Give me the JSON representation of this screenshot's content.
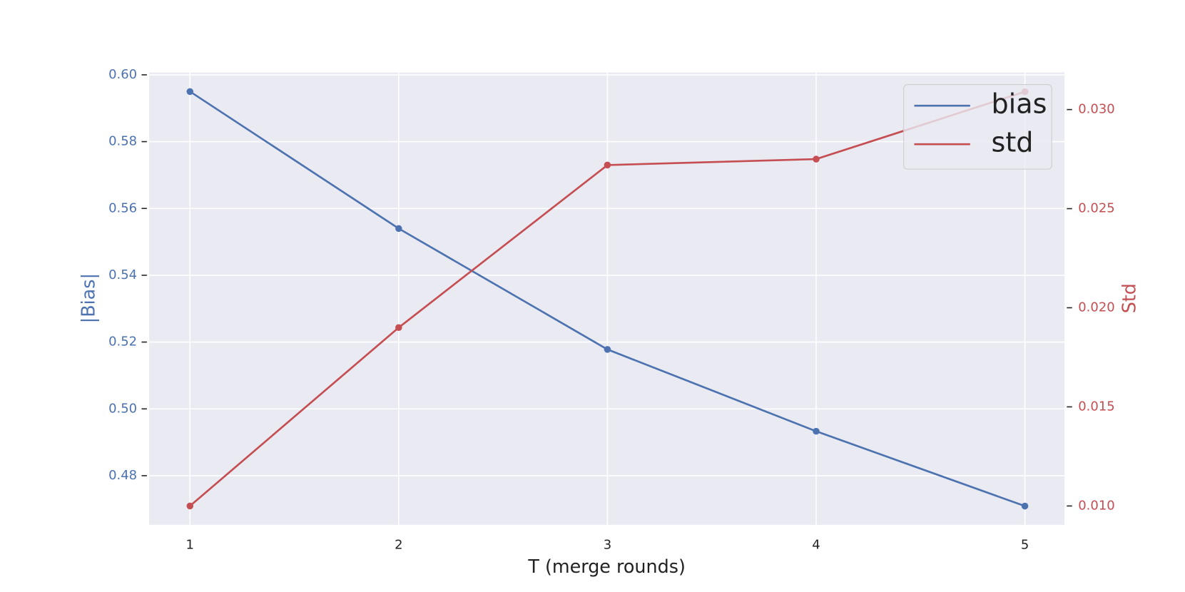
{
  "chart_data": {
    "type": "line",
    "x_label": "T (merge rounds)",
    "y_label": "|Bias|",
    "y2_label": "Std",
    "x": [
      1,
      2,
      3,
      4,
      5
    ],
    "xlim": [
      0.8045,
      5.19
    ],
    "xticks": [
      1,
      2,
      3,
      4,
      5
    ],
    "ylim": [
      0.4653,
      0.6007
    ],
    "yticks": [
      {
        "value": 0.48,
        "label": "0.48"
      },
      {
        "value": 0.5,
        "label": "0.50"
      },
      {
        "value": 0.52,
        "label": "0.52"
      },
      {
        "value": 0.54,
        "label": "0.54"
      },
      {
        "value": 0.56,
        "label": "0.56"
      },
      {
        "value": 0.58,
        "label": "0.58"
      },
      {
        "value": 0.6,
        "label": "0.60"
      }
    ],
    "y2lim": [
      0.00905,
      0.03187
    ],
    "y2ticks": [
      {
        "value": 0.01,
        "label": "0.010"
      },
      {
        "value": 0.015,
        "label": "0.015"
      },
      {
        "value": 0.02,
        "label": "0.020"
      },
      {
        "value": 0.025,
        "label": "0.025"
      },
      {
        "value": 0.03,
        "label": "0.030"
      }
    ],
    "grid": true,
    "legend": "upper right",
    "series": [
      {
        "name": "bias",
        "color": "#4c72b0",
        "values": [
          0.595,
          0.554,
          0.5178,
          0.4933,
          0.4709
        ]
      },
      {
        "name": "std",
        "color": "#c44e52",
        "axis": "y2",
        "values": [
          0.01,
          0.019,
          0.0272,
          0.0275,
          0.0309
        ]
      }
    ]
  }
}
